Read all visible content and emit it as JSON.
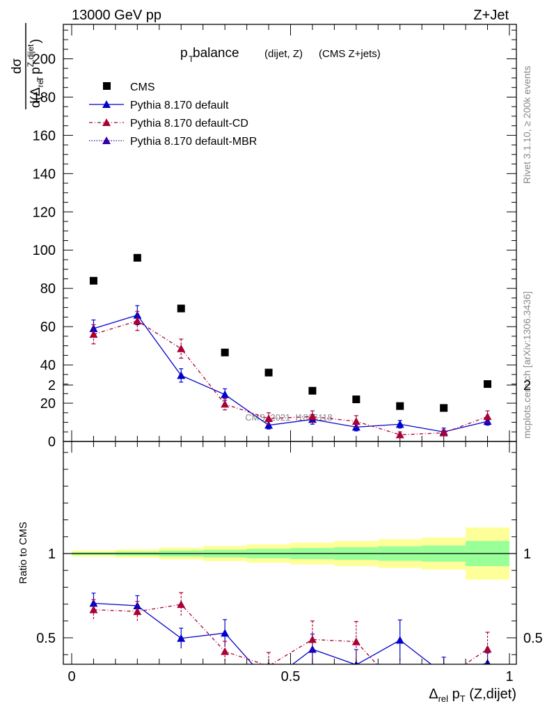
{
  "header": {
    "left": "13000 GeV pp",
    "right": "Z+Jet"
  },
  "title": {
    "main": "p",
    "main_sub": "T",
    "balance": " balance",
    "qualifier": "(dijet, Z)",
    "paren": "(CMS Z+jets)"
  },
  "ylabel": {
    "num": "dσ",
    "den_pre": "d(Δ",
    "den_sub": "rel",
    "den_p": " p",
    "den_sup": "Z,dijet",
    "den_sub2": "T",
    "den_post": ")"
  },
  "side_text": {
    "rivet": "Rivet 3.1.10, ≥ 200k events",
    "mcplots": "mcplots.cern.ch [arXiv:1306.3436]"
  },
  "watermark": "CMS_2021_I1866118",
  "ratio_ylabel": "Ratio to CMS",
  "xlabel": {
    "delta": "Δ",
    "sub": "rel",
    "p": " p",
    "psub": "T",
    "rest": " (Z,dijet)"
  },
  "colors": {
    "cms": "#000000",
    "default": "#0000cc",
    "cd": "#aa0033",
    "mbr": "#3300aa",
    "band_outer": "#ffff99",
    "band_inner": "#99ff99"
  },
  "chart_data": [
    {
      "type": "scatter",
      "title": "p_T balance (dijet, Z) (CMS Z+jets)",
      "xlim": [
        0,
        1
      ],
      "ylim": [
        0,
        218
      ],
      "yticks": [
        "0",
        "20",
        "40",
        "60",
        "80",
        "100",
        "120",
        "140",
        "160",
        "180",
        "200"
      ],
      "ytick_values": [
        0,
        20,
        40,
        60,
        80,
        100,
        120,
        140,
        160,
        180,
        200
      ],
      "x": [
        0.05,
        0.15,
        0.25,
        0.35,
        0.45,
        0.55,
        0.65,
        0.75,
        0.85,
        0.95
      ],
      "legend": [
        {
          "key": "cms",
          "label": "CMS"
        },
        {
          "key": "default",
          "label": "Pythia 8.170 default"
        },
        {
          "key": "cd",
          "label": "Pythia 8.170 default-CD"
        },
        {
          "key": "mbr",
          "label": "Pythia 8.170 default-MBR"
        }
      ],
      "series": [
        {
          "key": "cms",
          "name": "CMS",
          "values": [
            84.0,
            96.0,
            69.5,
            46.5,
            36.0,
            26.5,
            22.0,
            18.5,
            17.5,
            30.0
          ],
          "err": [
            0,
            0,
            0,
            0,
            0,
            0,
            0,
            0,
            0,
            0
          ]
        },
        {
          "key": "default",
          "name": "Pythia 8.170 default",
          "values": [
            59.0,
            66.0,
            34.5,
            24.5,
            8.5,
            11.5,
            7.5,
            9.0,
            5.0,
            10.5
          ],
          "err": [
            4.5,
            5.0,
            3.5,
            3.0,
            2.0,
            2.5,
            2.0,
            2.0,
            2.0,
            2.0
          ]
        },
        {
          "key": "cd",
          "name": "Pythia 8.170 default-CD",
          "values": [
            56.0,
            63.0,
            48.5,
            19.5,
            12.0,
            13.0,
            10.5,
            3.5,
            4.5,
            13.0
          ],
          "err": [
            5.0,
            5.0,
            5.0,
            3.0,
            3.0,
            3.0,
            3.0,
            1.5,
            1.5,
            3.0
          ]
        }
      ]
    },
    {
      "type": "line",
      "ylabel": "Ratio to CMS",
      "xlabel": "Δ_rel p_T (Z,dijet)",
      "xlim": [
        0,
        1
      ],
      "ylim": [
        0.34,
        2.3
      ],
      "xticks": [
        "0",
        "0.5",
        "1"
      ],
      "xtick_values": [
        0,
        0.5,
        1
      ],
      "yticks": [
        "0.5",
        "1",
        "2"
      ],
      "ytick_values": [
        0.5,
        1,
        2
      ],
      "band_edges": [
        0.0,
        0.1,
        0.2,
        0.3,
        0.4,
        0.5,
        0.6,
        0.7,
        0.8,
        0.9,
        1.0
      ],
      "band_outer": [
        0.018,
        0.025,
        0.035,
        0.045,
        0.055,
        0.065,
        0.075,
        0.085,
        0.095,
        0.155
      ],
      "band_inner": [
        0.008,
        0.012,
        0.018,
        0.023,
        0.028,
        0.033,
        0.038,
        0.043,
        0.048,
        0.075
      ],
      "series": [
        {
          "key": "default",
          "name": "Pythia 8.170 default",
          "values": [
            0.705,
            0.69,
            0.497,
            0.528,
            0.235,
            0.432,
            0.34,
            0.486,
            0.285,
            0.35
          ],
          "err": [
            0.06,
            0.06,
            0.06,
            0.08,
            0.05,
            0.09,
            0.09,
            0.12,
            0.1,
            0.06
          ]
        },
        {
          "key": "cd",
          "name": "Pythia 8.170 default-CD",
          "values": [
            0.667,
            0.656,
            0.698,
            0.419,
            0.333,
            0.49,
            0.477,
            0.19,
            0.257,
            0.433
          ],
          "err": [
            0.06,
            0.06,
            0.07,
            0.06,
            0.08,
            0.11,
            0.12,
            0.08,
            0.08,
            0.1
          ]
        }
      ]
    }
  ]
}
